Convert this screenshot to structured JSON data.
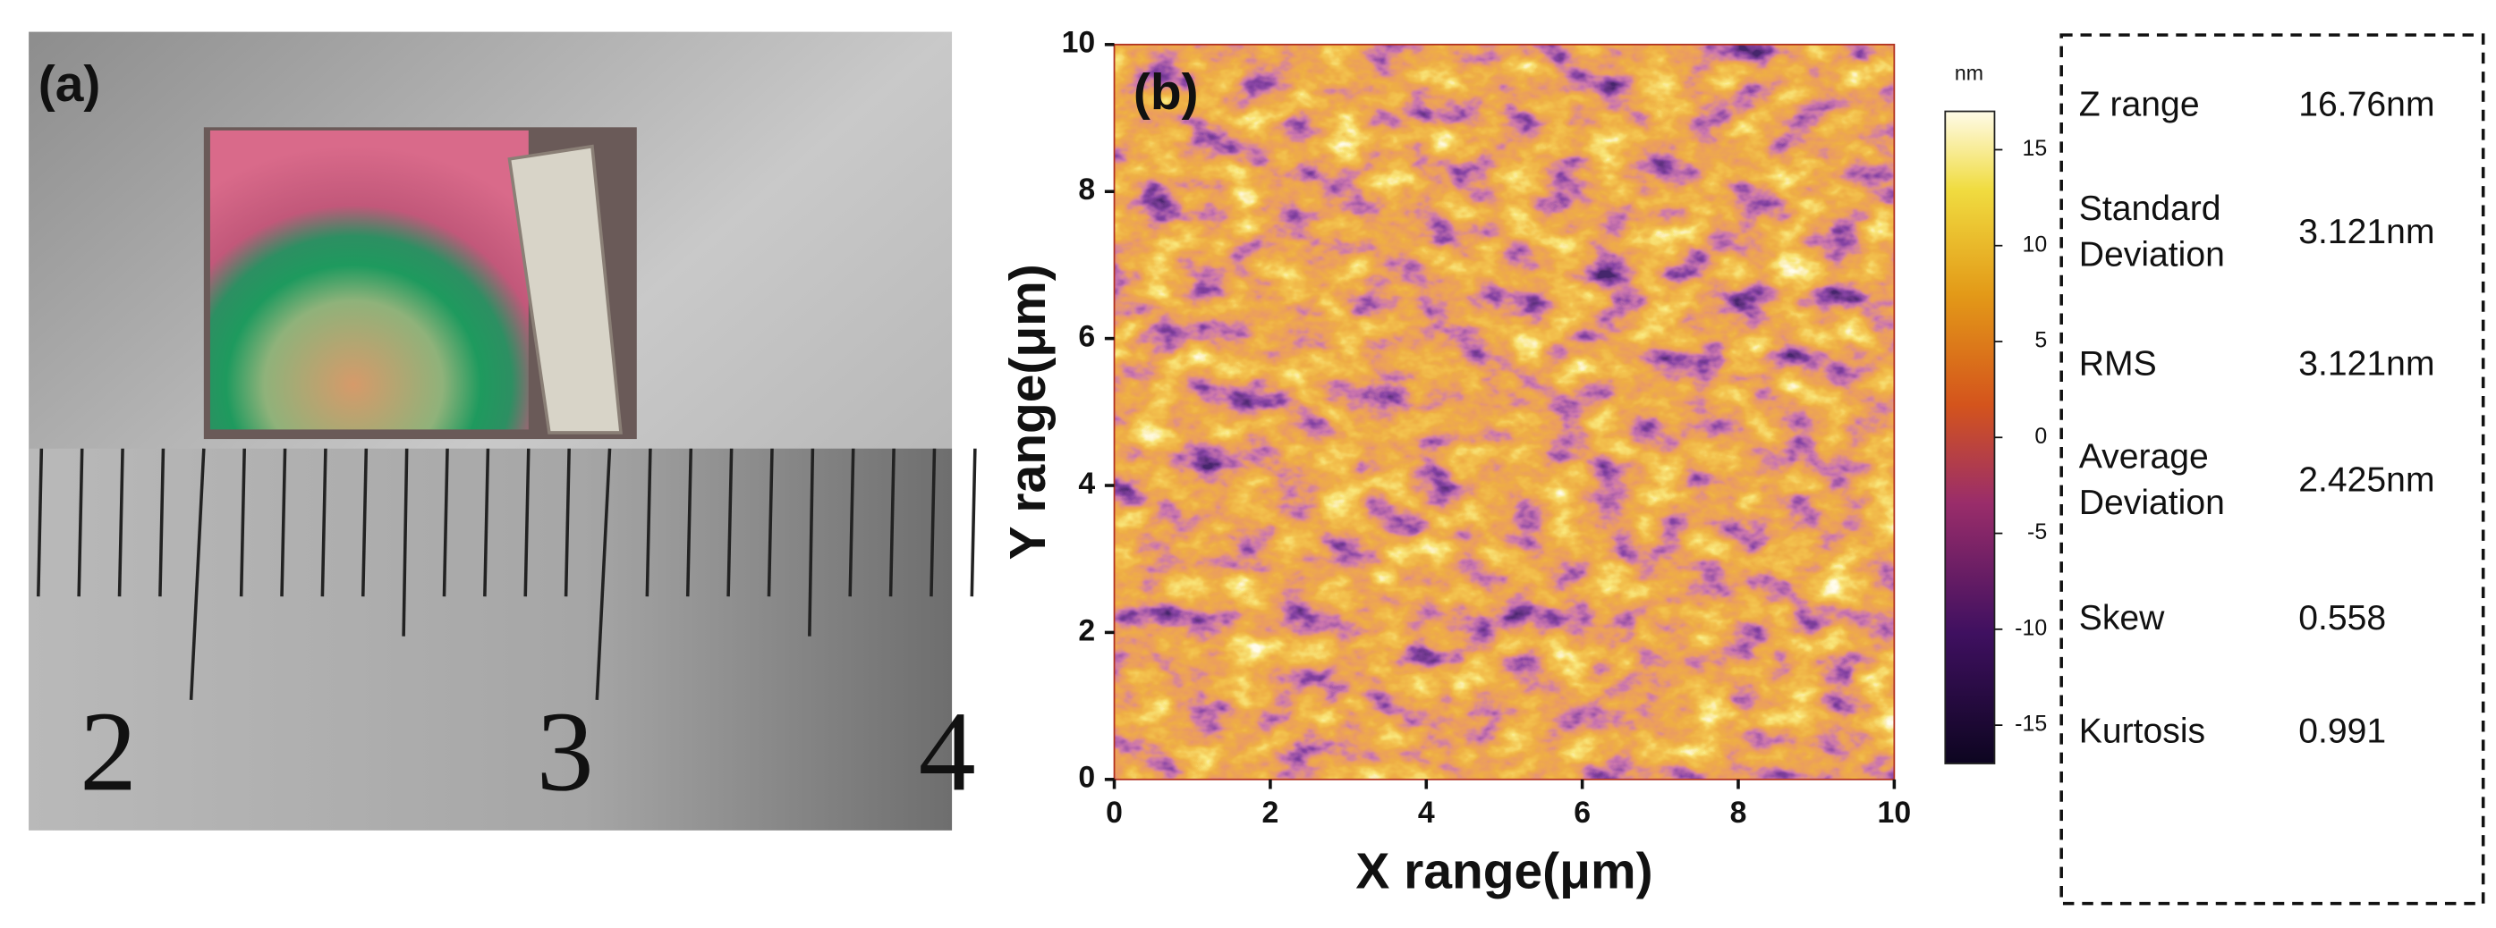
{
  "panel_a": {
    "label": "(a)",
    "ruler_numbers": [
      "2",
      "3",
      "4"
    ]
  },
  "chart_data": {
    "type": "heatmap",
    "label": "(b)",
    "x_label": "X range(μm)",
    "y_label": "Y range(μm)",
    "xlim": [
      0,
      10
    ],
    "ylim": [
      0,
      10
    ],
    "xticks": [
      0,
      2,
      4,
      6,
      8,
      10
    ],
    "yticks": [
      0,
      2,
      4,
      6,
      8,
      10
    ],
    "colorbar": {
      "unit": "nm",
      "lim": [
        -17,
        17
      ],
      "ticks": [
        -15,
        -10,
        -5,
        0,
        5,
        10,
        15
      ]
    }
  },
  "stats": [
    {
      "name": [
        "Z range"
      ],
      "value": "16.76nm"
    },
    {
      "name": [
        "Standard",
        "Deviation"
      ],
      "value": "3.121nm"
    },
    {
      "name": [
        "RMS"
      ],
      "value": "3.121nm"
    },
    {
      "name": [
        "Average",
        "Deviation"
      ],
      "value": "2.425nm"
    },
    {
      "name": [
        "Skew"
      ],
      "value": "0.558"
    },
    {
      "name": [
        "Kurtosis"
      ],
      "value": "0.991"
    }
  ]
}
